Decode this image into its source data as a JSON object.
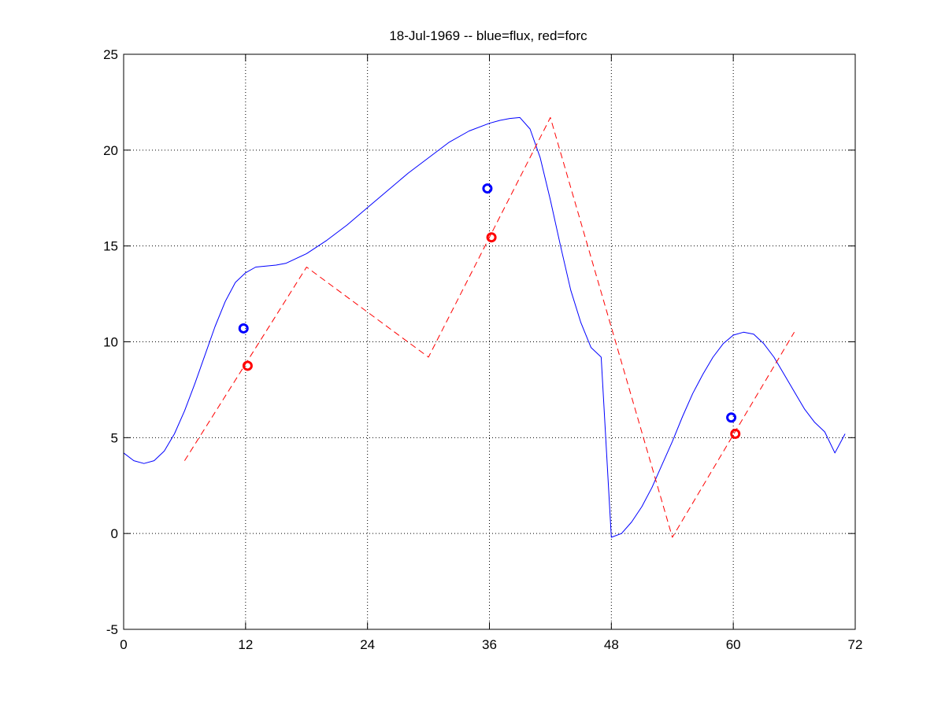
{
  "chart_data": {
    "type": "line",
    "title": "18-Jul-1969 -- blue=flux, red=forc",
    "xlabel": "",
    "ylabel": "",
    "xlim": [
      0,
      72
    ],
    "ylim": [
      -5,
      25
    ],
    "xticks": [
      0,
      12,
      24,
      36,
      48,
      60,
      72
    ],
    "yticks": [
      -5,
      0,
      5,
      10,
      15,
      20,
      25
    ],
    "grid": true,
    "series": [
      {
        "color": "#0000ff",
        "style": "solid",
        "x": [
          0,
          1,
          2,
          3,
          4,
          5,
          6,
          7,
          8,
          9,
          10,
          11,
          12,
          13,
          14,
          15,
          16,
          18,
          20,
          22,
          24,
          26,
          28,
          30,
          32,
          34,
          36,
          37,
          38,
          39,
          40,
          41,
          42,
          43,
          44,
          45,
          46,
          47,
          48,
          49,
          50,
          51,
          52,
          53,
          54,
          55,
          56,
          57,
          58,
          59,
          60,
          61,
          62,
          63,
          64,
          65,
          66,
          67,
          68,
          69,
          70,
          71
        ],
        "y": [
          4.2,
          3.8,
          3.65,
          3.8,
          4.3,
          5.2,
          6.4,
          7.8,
          9.3,
          10.8,
          12.1,
          13.1,
          13.6,
          13.9,
          13.95,
          14.0,
          14.1,
          14.6,
          15.3,
          16.1,
          17.0,
          17.9,
          18.8,
          19.6,
          20.4,
          21.0,
          21.4,
          21.55,
          21.65,
          21.7,
          21.1,
          19.6,
          17.4,
          15.0,
          12.7,
          11.0,
          9.7,
          9.2,
          -0.2,
          0.0,
          0.6,
          1.4,
          2.4,
          3.6,
          4.8,
          6.1,
          7.3,
          8.3,
          9.2,
          9.9,
          10.35,
          10.5,
          10.4,
          9.9,
          9.2,
          8.3,
          7.4,
          6.5,
          5.8,
          5.3,
          4.2,
          5.2
        ],
        "markers": {
          "x": [
            11.8,
            35.8,
            59.8
          ],
          "y": [
            10.7,
            18.0,
            6.05
          ]
        }
      },
      {
        "color": "#ff0000",
        "style": "dashed",
        "x": [
          6,
          18,
          30,
          42,
          54,
          66
        ],
        "y": [
          3.8,
          13.9,
          9.2,
          21.7,
          -0.2,
          10.5
        ],
        "markers": {
          "x": [
            12.2,
            36.2,
            60.2
          ],
          "y": [
            8.75,
            15.45,
            5.2
          ]
        }
      }
    ]
  }
}
